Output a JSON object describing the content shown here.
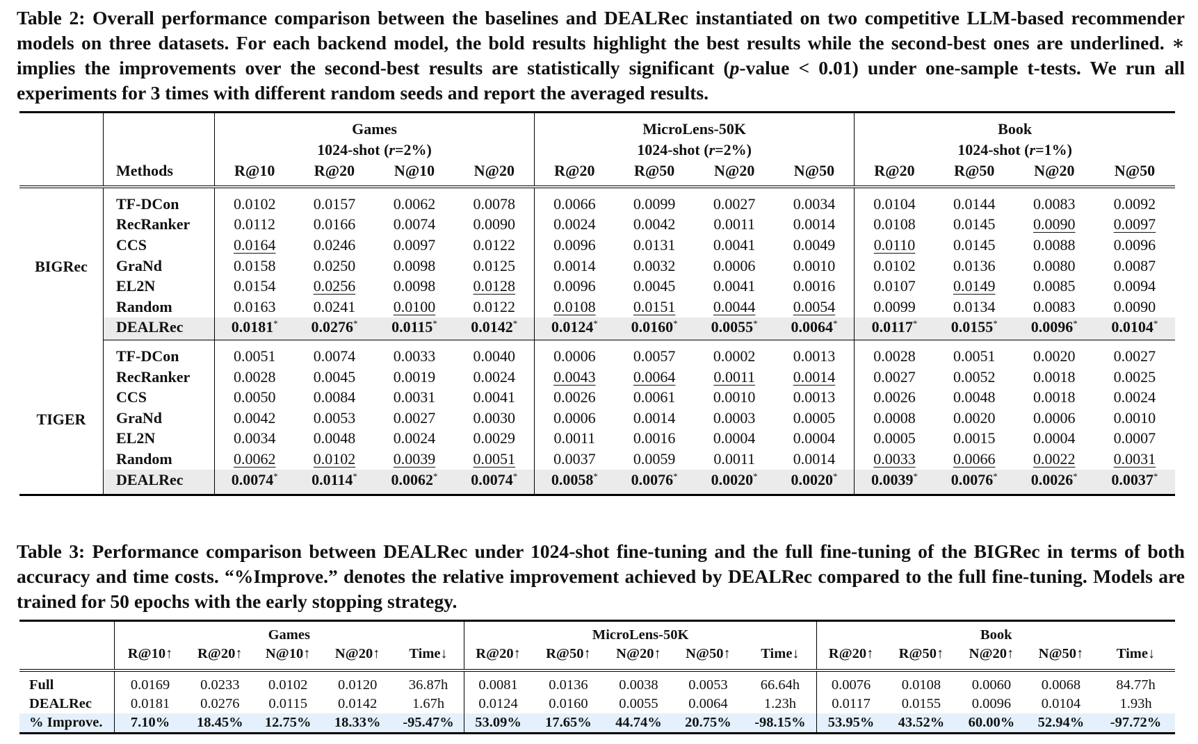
{
  "table2": {
    "caption": "Table 2: Overall performance comparison between the baselines and DEALRec instantiated on two competitive LLM-based recommender models on three datasets. For each backend model, the bold results highlight the best results while the second-best ones are underlined. ∗ implies the improvements over the second-best results are statistically significant (p-value < 0.01) under one-sample t-tests. We run all experiments for 3 times with different random seeds and report the averaged results.",
    "methods_header": "Methods",
    "datasets": [
      {
        "name": "Games",
        "shot": "1024-shot (r=2%)",
        "metrics": [
          "R@10",
          "R@20",
          "N@10",
          "N@20"
        ]
      },
      {
        "name": "MicroLens-50K",
        "shot": "1024-shot (r=2%)",
        "metrics": [
          "R@20",
          "R@50",
          "N@20",
          "N@50"
        ]
      },
      {
        "name": "Book",
        "shot": "1024-shot (r=1%)",
        "metrics": [
          "R@20",
          "R@50",
          "N@20",
          "N@50"
        ]
      }
    ],
    "groups": [
      {
        "name": "BIGRec",
        "rows": [
          {
            "method": "TF-DCon",
            "values": [
              "0.0102",
              "0.0157",
              "0.0062",
              "0.0078",
              "0.0066",
              "0.0099",
              "0.0027",
              "0.0034",
              "0.0104",
              "0.0144",
              "0.0083",
              "0.0092"
            ],
            "underline": []
          },
          {
            "method": "RecRanker",
            "values": [
              "0.0112",
              "0.0166",
              "0.0074",
              "0.0090",
              "0.0024",
              "0.0042",
              "0.0011",
              "0.0014",
              "0.0108",
              "0.0145",
              "0.0090",
              "0.0097"
            ],
            "underline": [
              10,
              11
            ]
          },
          {
            "method": "CCS",
            "values": [
              "0.0164",
              "0.0246",
              "0.0097",
              "0.0122",
              "0.0096",
              "0.0131",
              "0.0041",
              "0.0049",
              "0.0110",
              "0.0145",
              "0.0088",
              "0.0096"
            ],
            "underline": [
              0,
              8
            ]
          },
          {
            "method": "GraNd",
            "values": [
              "0.0158",
              "0.0250",
              "0.0098",
              "0.0125",
              "0.0014",
              "0.0032",
              "0.0006",
              "0.0010",
              "0.0102",
              "0.0136",
              "0.0080",
              "0.0087"
            ],
            "underline": []
          },
          {
            "method": "EL2N",
            "values": [
              "0.0154",
              "0.0256",
              "0.0098",
              "0.0128",
              "0.0096",
              "0.0045",
              "0.0041",
              "0.0016",
              "0.0107",
              "0.0149",
              "0.0085",
              "0.0094"
            ],
            "underline": [
              1,
              3,
              9
            ]
          },
          {
            "method": "Random",
            "values": [
              "0.0163",
              "0.0241",
              "0.0100",
              "0.0122",
              "0.0108",
              "0.0151",
              "0.0044",
              "0.0054",
              "0.0099",
              "0.0134",
              "0.0083",
              "0.0090"
            ],
            "underline": [
              2,
              4,
              5,
              6,
              7
            ]
          },
          {
            "method": "DEALRec",
            "values": [
              "0.0181",
              "0.0276",
              "0.0115",
              "0.0142",
              "0.0124",
              "0.0160",
              "0.0055",
              "0.0064",
              "0.0117",
              "0.0155",
              "0.0096",
              "0.0104"
            ],
            "underline": [],
            "ours": true,
            "star": "*"
          }
        ]
      },
      {
        "name": "TIGER",
        "rows": [
          {
            "method": "TF-DCon",
            "values": [
              "0.0051",
              "0.0074",
              "0.0033",
              "0.0040",
              "0.0006",
              "0.0057",
              "0.0002",
              "0.0013",
              "0.0028",
              "0.0051",
              "0.0020",
              "0.0027"
            ],
            "underline": []
          },
          {
            "method": "RecRanker",
            "values": [
              "0.0028",
              "0.0045",
              "0.0019",
              "0.0024",
              "0.0043",
              "0.0064",
              "0.0011",
              "0.0014",
              "0.0027",
              "0.0052",
              "0.0018",
              "0.0025"
            ],
            "underline": [
              4,
              5,
              6,
              7
            ]
          },
          {
            "method": "CCS",
            "values": [
              "0.0050",
              "0.0084",
              "0.0031",
              "0.0041",
              "0.0026",
              "0.0061",
              "0.0010",
              "0.0013",
              "0.0026",
              "0.0048",
              "0.0018",
              "0.0024"
            ],
            "underline": []
          },
          {
            "method": "GraNd",
            "values": [
              "0.0042",
              "0.0053",
              "0.0027",
              "0.0030",
              "0.0006",
              "0.0014",
              "0.0003",
              "0.0005",
              "0.0008",
              "0.0020",
              "0.0006",
              "0.0010"
            ],
            "underline": []
          },
          {
            "method": "EL2N",
            "values": [
              "0.0034",
              "0.0048",
              "0.0024",
              "0.0029",
              "0.0011",
              "0.0016",
              "0.0004",
              "0.0004",
              "0.0005",
              "0.0015",
              "0.0004",
              "0.0007"
            ],
            "underline": []
          },
          {
            "method": "Random",
            "values": [
              "0.0062",
              "0.0102",
              "0.0039",
              "0.0051",
              "0.0037",
              "0.0059",
              "0.0011",
              "0.0014",
              "0.0033",
              "0.0066",
              "0.0022",
              "0.0031"
            ],
            "underline": [
              0,
              1,
              2,
              3,
              8,
              9,
              10,
              11
            ]
          },
          {
            "method": "DEALRec",
            "values": [
              "0.0074",
              "0.0114",
              "0.0062",
              "0.0074",
              "0.0058",
              "0.0076",
              "0.0020",
              "0.0020",
              "0.0039",
              "0.0076",
              "0.0026",
              "0.0037"
            ],
            "underline": [],
            "ours": true,
            "star": "*"
          }
        ]
      }
    ]
  },
  "table3": {
    "caption": "Table 3: Performance comparison between DEALRec under 1024-shot fine-tuning and the full fine-tuning of the BIGRec in terms of both accuracy and time costs. “%Improve.” denotes the relative improvement achieved by DEALRec compared to the full fine-tuning. Models are trained for 50 epochs with the early stopping strategy.",
    "datasets": [
      {
        "name": "Games",
        "metrics": [
          "R@10↑",
          "R@20↑",
          "N@10↑",
          "N@20↑",
          "Time↓"
        ]
      },
      {
        "name": "MicroLens-50K",
        "metrics": [
          "R@20↑",
          "R@50↑",
          "N@20↑",
          "N@50↑",
          "Time↓"
        ]
      },
      {
        "name": "Book",
        "metrics": [
          "R@20↑",
          "R@50↑",
          "N@20↑",
          "N@50↑",
          "Time↓"
        ]
      }
    ],
    "rows": [
      {
        "label": "Full",
        "values": [
          "0.0169",
          "0.0233",
          "0.0102",
          "0.0120",
          "36.87h",
          "0.0081",
          "0.0136",
          "0.0038",
          "0.0053",
          "66.64h",
          "0.0076",
          "0.0108",
          "0.0060",
          "0.0068",
          "84.77h"
        ]
      },
      {
        "label": "DEALRec",
        "values": [
          "0.0181",
          "0.0276",
          "0.0115",
          "0.0142",
          "1.67h",
          "0.0124",
          "0.0160",
          "0.0055",
          "0.0064",
          "1.23h",
          "0.0117",
          "0.0155",
          "0.0096",
          "0.0104",
          "1.93h"
        ]
      },
      {
        "label": "% Improve.",
        "values": [
          "7.10%",
          "18.45%",
          "12.75%",
          "18.33%",
          "-95.47%",
          "53.09%",
          "17.65%",
          "44.74%",
          "20.75%",
          "-98.15%",
          "53.95%",
          "43.52%",
          "60.00%",
          "52.94%",
          "-97.72%"
        ],
        "highlight": true
      }
    ]
  }
}
